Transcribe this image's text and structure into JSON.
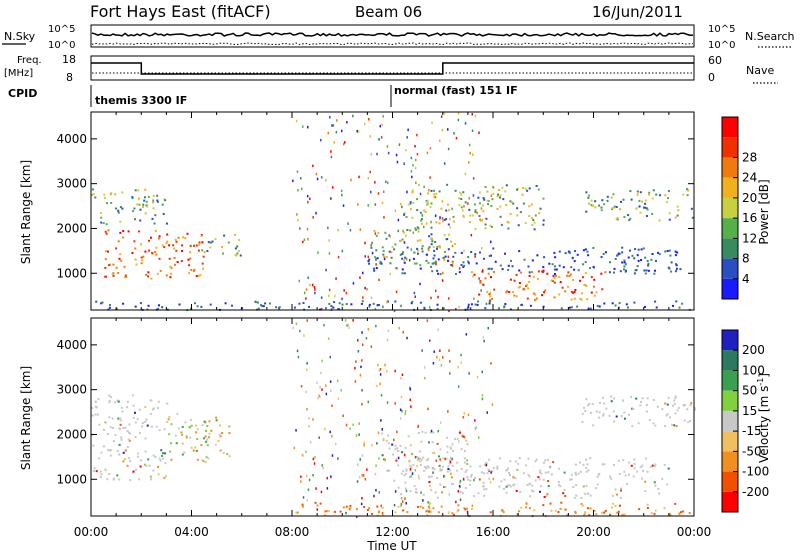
{
  "header": {
    "site": "Fort Hays East (fitACF)",
    "beam": "Beam 06",
    "date": "16/Jun/2011"
  },
  "status_panels": {
    "nsky_label": "N.Sky",
    "nsearch_label": "N.Search",
    "noise_ticks_left": [
      "10^5",
      "10^0"
    ],
    "noise_ticks_right": [
      "10^5",
      "10^0"
    ],
    "freq_label_line1": "Freq.",
    "freq_label_line2": "[MHz]",
    "freq_ticks": [
      "18",
      "8"
    ],
    "nave_label": "Nave",
    "nave_ticks": [
      "60",
      "0"
    ],
    "cpid_label": "CPID",
    "cpid_segments": [
      {
        "label": "themis 3300 IF",
        "start_hour": 0
      },
      {
        "label": "normal (fast) 151 IF",
        "start_hour": 12
      }
    ],
    "freq_steps": [
      {
        "from_hour": 0,
        "to_hour": 2.0,
        "level": "high"
      },
      {
        "from_hour": 2.0,
        "to_hour": 14.0,
        "level": "low"
      },
      {
        "from_hour": 14.0,
        "to_hour": 24.0,
        "level": "high"
      }
    ]
  },
  "chart_data": [
    {
      "type": "heatmap",
      "name": "power",
      "ylabel": "Slant Range [km]",
      "ylim": [
        180,
        4600
      ],
      "yticks": [
        "1000",
        "2000",
        "3000",
        "4000"
      ],
      "xlim": [
        0,
        24
      ],
      "colorbar": {
        "label": "Power [dB]",
        "ticks": [
          "4",
          "8",
          "12",
          "16",
          "20",
          "24",
          "28"
        ],
        "colors": [
          "#1a1aff",
          "#2850c0",
          "#3a8a60",
          "#55b04a",
          "#c8d040",
          "#f0b020",
          "#f07a10",
          "#f03000",
          "#ff0000"
        ]
      },
      "regions": [
        {
          "t0": 0.0,
          "t1": 3.0,
          "r0": 2100,
          "r1": 2900,
          "level": "mid"
        },
        {
          "t0": 0.5,
          "t1": 4.5,
          "r0": 900,
          "r1": 2000,
          "level": "high"
        },
        {
          "t0": 4.3,
          "t1": 6.0,
          "r0": 1400,
          "r1": 1900,
          "level": "mid"
        },
        {
          "t0": 11.2,
          "t1": 14.5,
          "r0": 1200,
          "r1": 2000,
          "level": "mid"
        },
        {
          "t0": 11.0,
          "t1": 23.5,
          "r0": 1000,
          "r1": 1600,
          "level": "low"
        },
        {
          "t0": 15.0,
          "t1": 20.5,
          "r0": 400,
          "r1": 1100,
          "level": "high"
        },
        {
          "t0": 12.5,
          "t1": 18.0,
          "r0": 2000,
          "r1": 3000,
          "level": "mid"
        },
        {
          "t0": 19.5,
          "t1": 24.0,
          "r0": 2200,
          "r1": 2900,
          "level": "mid"
        },
        {
          "t0": 0.0,
          "t1": 24.0,
          "r0": 200,
          "r1": 400,
          "level": "low"
        }
      ]
    },
    {
      "type": "heatmap",
      "name": "velocity",
      "ylabel": "Slant Range [km]",
      "ylim": [
        180,
        4600
      ],
      "yticks": [
        "1000",
        "2000",
        "3000",
        "4000"
      ],
      "xlim": [
        0,
        24
      ],
      "xlabel": "Time UT",
      "xticks": [
        "00:00",
        "04:00",
        "08:00",
        "12:00",
        "16:00",
        "20:00",
        "00:00"
      ],
      "colorbar": {
        "label": "Velocity [m s^-1]",
        "ticks": [
          "200",
          "100",
          "50",
          "15",
          "-15",
          "-50",
          "-100",
          "-200"
        ],
        "colors": [
          "#2020c0",
          "#2a7a60",
          "#3aa050",
          "#80d040",
          "#c8c8c8",
          "#f0c060",
          "#f09020",
          "#f05000",
          "#ff0000"
        ]
      },
      "regions": [
        {
          "t0": 0.0,
          "t1": 3.0,
          "r0": 1000,
          "r1": 2900,
          "level": "gray"
        },
        {
          "t0": 3.0,
          "t1": 5.5,
          "r0": 1400,
          "r1": 2500,
          "level": "mixed"
        },
        {
          "t0": 11.5,
          "t1": 15.0,
          "r0": 1200,
          "r1": 2100,
          "level": "gray"
        },
        {
          "t0": 12.0,
          "t1": 23.0,
          "r0": 600,
          "r1": 1500,
          "level": "gray"
        },
        {
          "t0": 19.5,
          "t1": 24.0,
          "r0": 2200,
          "r1": 2900,
          "level": "gray"
        },
        {
          "t0": 8.0,
          "t1": 24.0,
          "r0": 200,
          "r1": 500,
          "level": "orange"
        }
      ]
    }
  ]
}
